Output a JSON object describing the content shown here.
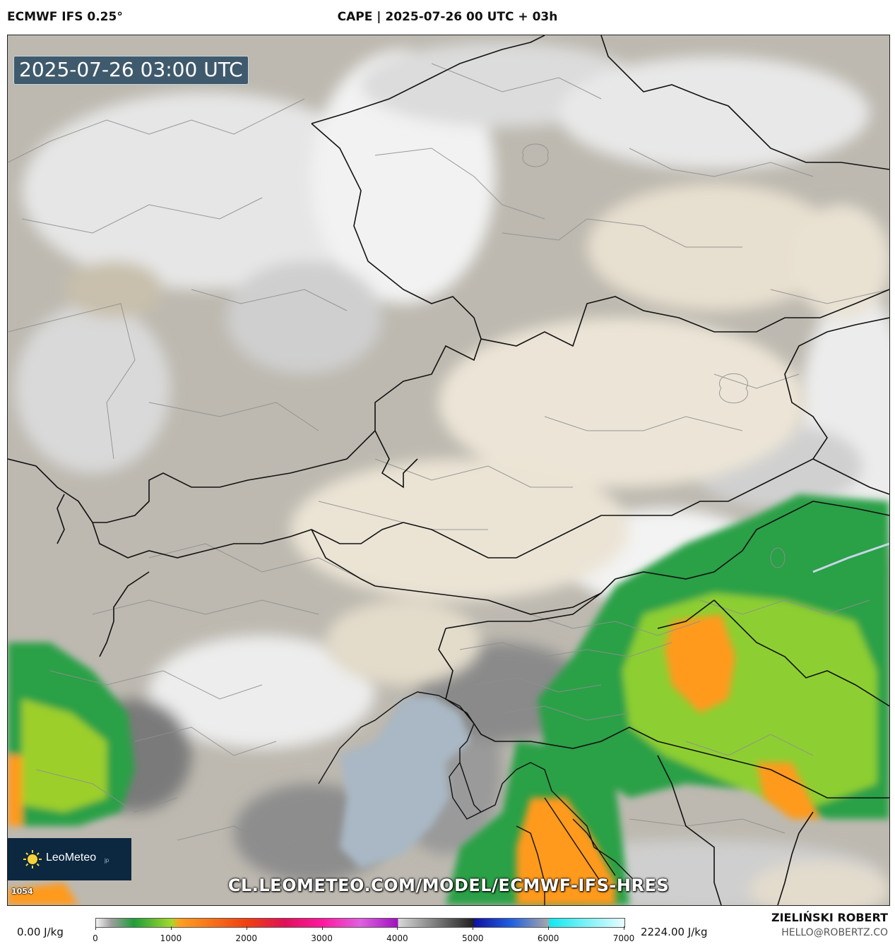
{
  "header": {
    "model": "ECMWF IFS 0.25°",
    "title": "CAPE | 2025-07-26 00 UTC + 03h"
  },
  "map": {
    "timestamp": "2025-07-26 03:00 UTC",
    "logo_text": "LeoMeteo",
    "logo_suffix": "jp",
    "run_id": "1054",
    "url_watermark": "CL.LEOMETEO.COM/MODEL/ECMWF-IFS-HRES"
  },
  "colorbar": {
    "min_label": "0.00 J/kg",
    "max_label": "2224.00 J/kg",
    "ticks": [
      "0",
      "1000",
      "2000",
      "3000",
      "4000",
      "5000",
      "6000",
      "7000"
    ],
    "range": [
      0,
      7000
    ],
    "colors": [
      {
        "at": 0,
        "color": "#f4f4f4"
      },
      {
        "at": 200,
        "color": "#9e9e9e"
      },
      {
        "at": 500,
        "color": "#1e9e3a"
      },
      {
        "at": 1000,
        "color": "#a4d92a"
      },
      {
        "at": 1100,
        "color": "#ffa020"
      },
      {
        "at": 2000,
        "color": "#f04010"
      },
      {
        "at": 2500,
        "color": "#e0105a"
      },
      {
        "at": 3000,
        "color": "#ff18a0"
      },
      {
        "at": 3500,
        "color": "#e060e0"
      },
      {
        "at": 4000,
        "color": "#a010c0"
      },
      {
        "at": 4000,
        "color": "#d8d8d8"
      },
      {
        "at": 5000,
        "color": "#202020"
      },
      {
        "at": 5000,
        "color": "#1010a0"
      },
      {
        "at": 5500,
        "color": "#2060e0"
      },
      {
        "at": 6000,
        "color": "#a8a8a8"
      },
      {
        "at": 6000,
        "color": "#10e8f0"
      },
      {
        "at": 7000,
        "color": "#e8fcff"
      }
    ]
  },
  "footer": {
    "author": "ZIELIŃSKI ROBERT",
    "email": "HELLO@ROBERTZ.CO"
  },
  "colors": {
    "low_cape_grey": "#b8b4ab",
    "beige": "#e4dccb",
    "green": "#2aa046",
    "lime": "#9ccf2c",
    "orange": "#ff9a1a",
    "sea": "#a9b8c4",
    "badge": "#3f5a6c",
    "logo_bg": "#0c2840"
  }
}
